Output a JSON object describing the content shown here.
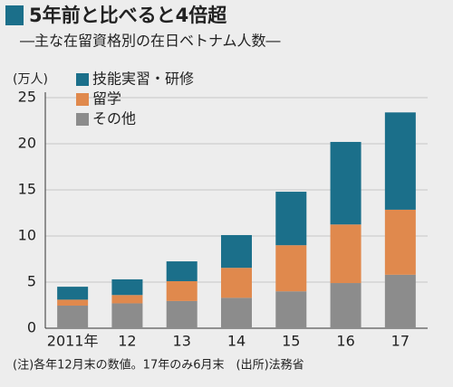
{
  "chart_data": {
    "type": "stacked-bar",
    "title": "5年前と比べると4倍超",
    "subtitle": "―主な在留資格別の在日ベトナム人数―",
    "y_label": "(万人)",
    "note": "(注)各年12月末の数値。17年のみ6月末　(出所)法務省",
    "categories": [
      "2011年",
      "12",
      "13",
      "14",
      "15",
      "16",
      "17"
    ],
    "series": [
      {
        "name": "技能実習・研修",
        "color": "#1b6f8a",
        "values": [
          1.4,
          1.7,
          2.15,
          3.55,
          5.8,
          8.95,
          10.55
        ]
      },
      {
        "name": "留学",
        "color": "#e0894d",
        "values": [
          0.65,
          0.9,
          2.15,
          3.25,
          5.0,
          6.35,
          7.05
        ]
      },
      {
        "name": "その他",
        "color": "#8c8c8c",
        "values": [
          2.45,
          2.7,
          2.95,
          3.3,
          4.0,
          4.9,
          5.8
        ]
      }
    ],
    "ylim": [
      0,
      25
    ],
    "yticks": [
      0,
      5,
      10,
      15,
      20,
      25
    ],
    "grid": true
  }
}
